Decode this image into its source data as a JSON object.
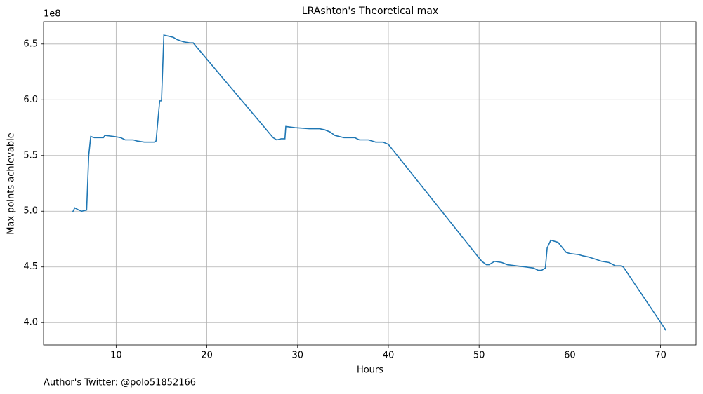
{
  "chart_data": {
    "type": "line",
    "title": "LRAshton's Theoretical max",
    "x_label": "Hours",
    "y_label": "Max points achievable",
    "y_offset_label": "1e8",
    "footnote": "Author's Twitter: @polo51852166",
    "grid": true,
    "xlim": [
      2.0,
      73.9
    ],
    "ylim": [
      3.8,
      6.7
    ],
    "xticks": [
      10,
      20,
      30,
      40,
      50,
      60,
      70
    ],
    "yticks": [
      {
        "value": 4,
        "label": "4.0"
      },
      4.5,
      {
        "value": 5,
        "label": "5.0"
      },
      5.5,
      {
        "value": 6,
        "label": "6.0"
      },
      6.5
    ],
    "series": [
      {
        "name": "Max points achievable",
        "color": "#1f77b4",
        "x": [
          5.2,
          5.44,
          5.9,
          6.2,
          6.75,
          6.98,
          7.2,
          7.6,
          8.6,
          8.76,
          9.84,
          10.5,
          11.0,
          11.9,
          12.3,
          13.1,
          13.5,
          14.2,
          14.4,
          14.8,
          15.0,
          15.26,
          15.8,
          16.3,
          16.7,
          17.4,
          18.1,
          18.5,
          18.9,
          27.3,
          27.7,
          28.2,
          28.6,
          28.7,
          29.7,
          31.3,
          32.4,
          33.0,
          33.6,
          34.1,
          35.1,
          36.3,
          36.8,
          37.8,
          38.6,
          39.4,
          40.0,
          49.8,
          50.3,
          50.8,
          51.1,
          51.7,
          52.5,
          53.1,
          54.1,
          55.1,
          56.0,
          56.5,
          56.9,
          57.3,
          57.5,
          57.9,
          58.7,
          59.6,
          60.0,
          61.0,
          61.4,
          62.0,
          62.8,
          63.5,
          64.3,
          65.0,
          65.6,
          65.9,
          70.6
        ],
        "values": [
          4.99,
          5.03,
          5.01,
          5.0,
          5.01,
          5.5,
          5.67,
          5.66,
          5.66,
          5.68,
          5.67,
          5.66,
          5.64,
          5.64,
          5.63,
          5.62,
          5.62,
          5.62,
          5.63,
          5.99,
          5.99,
          6.58,
          6.57,
          6.56,
          6.54,
          6.52,
          6.51,
          6.51,
          6.47,
          5.66,
          5.64,
          5.65,
          5.65,
          5.76,
          5.75,
          5.74,
          5.74,
          5.73,
          5.71,
          5.68,
          5.66,
          5.66,
          5.64,
          5.64,
          5.62,
          5.62,
          5.6,
          4.6,
          4.55,
          4.52,
          4.52,
          4.55,
          4.54,
          4.52,
          4.51,
          4.5,
          4.49,
          4.47,
          4.47,
          4.49,
          4.67,
          4.74,
          4.72,
          4.63,
          4.62,
          4.61,
          4.6,
          4.59,
          4.57,
          4.55,
          4.54,
          4.51,
          4.51,
          4.5,
          3.93
        ]
      }
    ]
  }
}
